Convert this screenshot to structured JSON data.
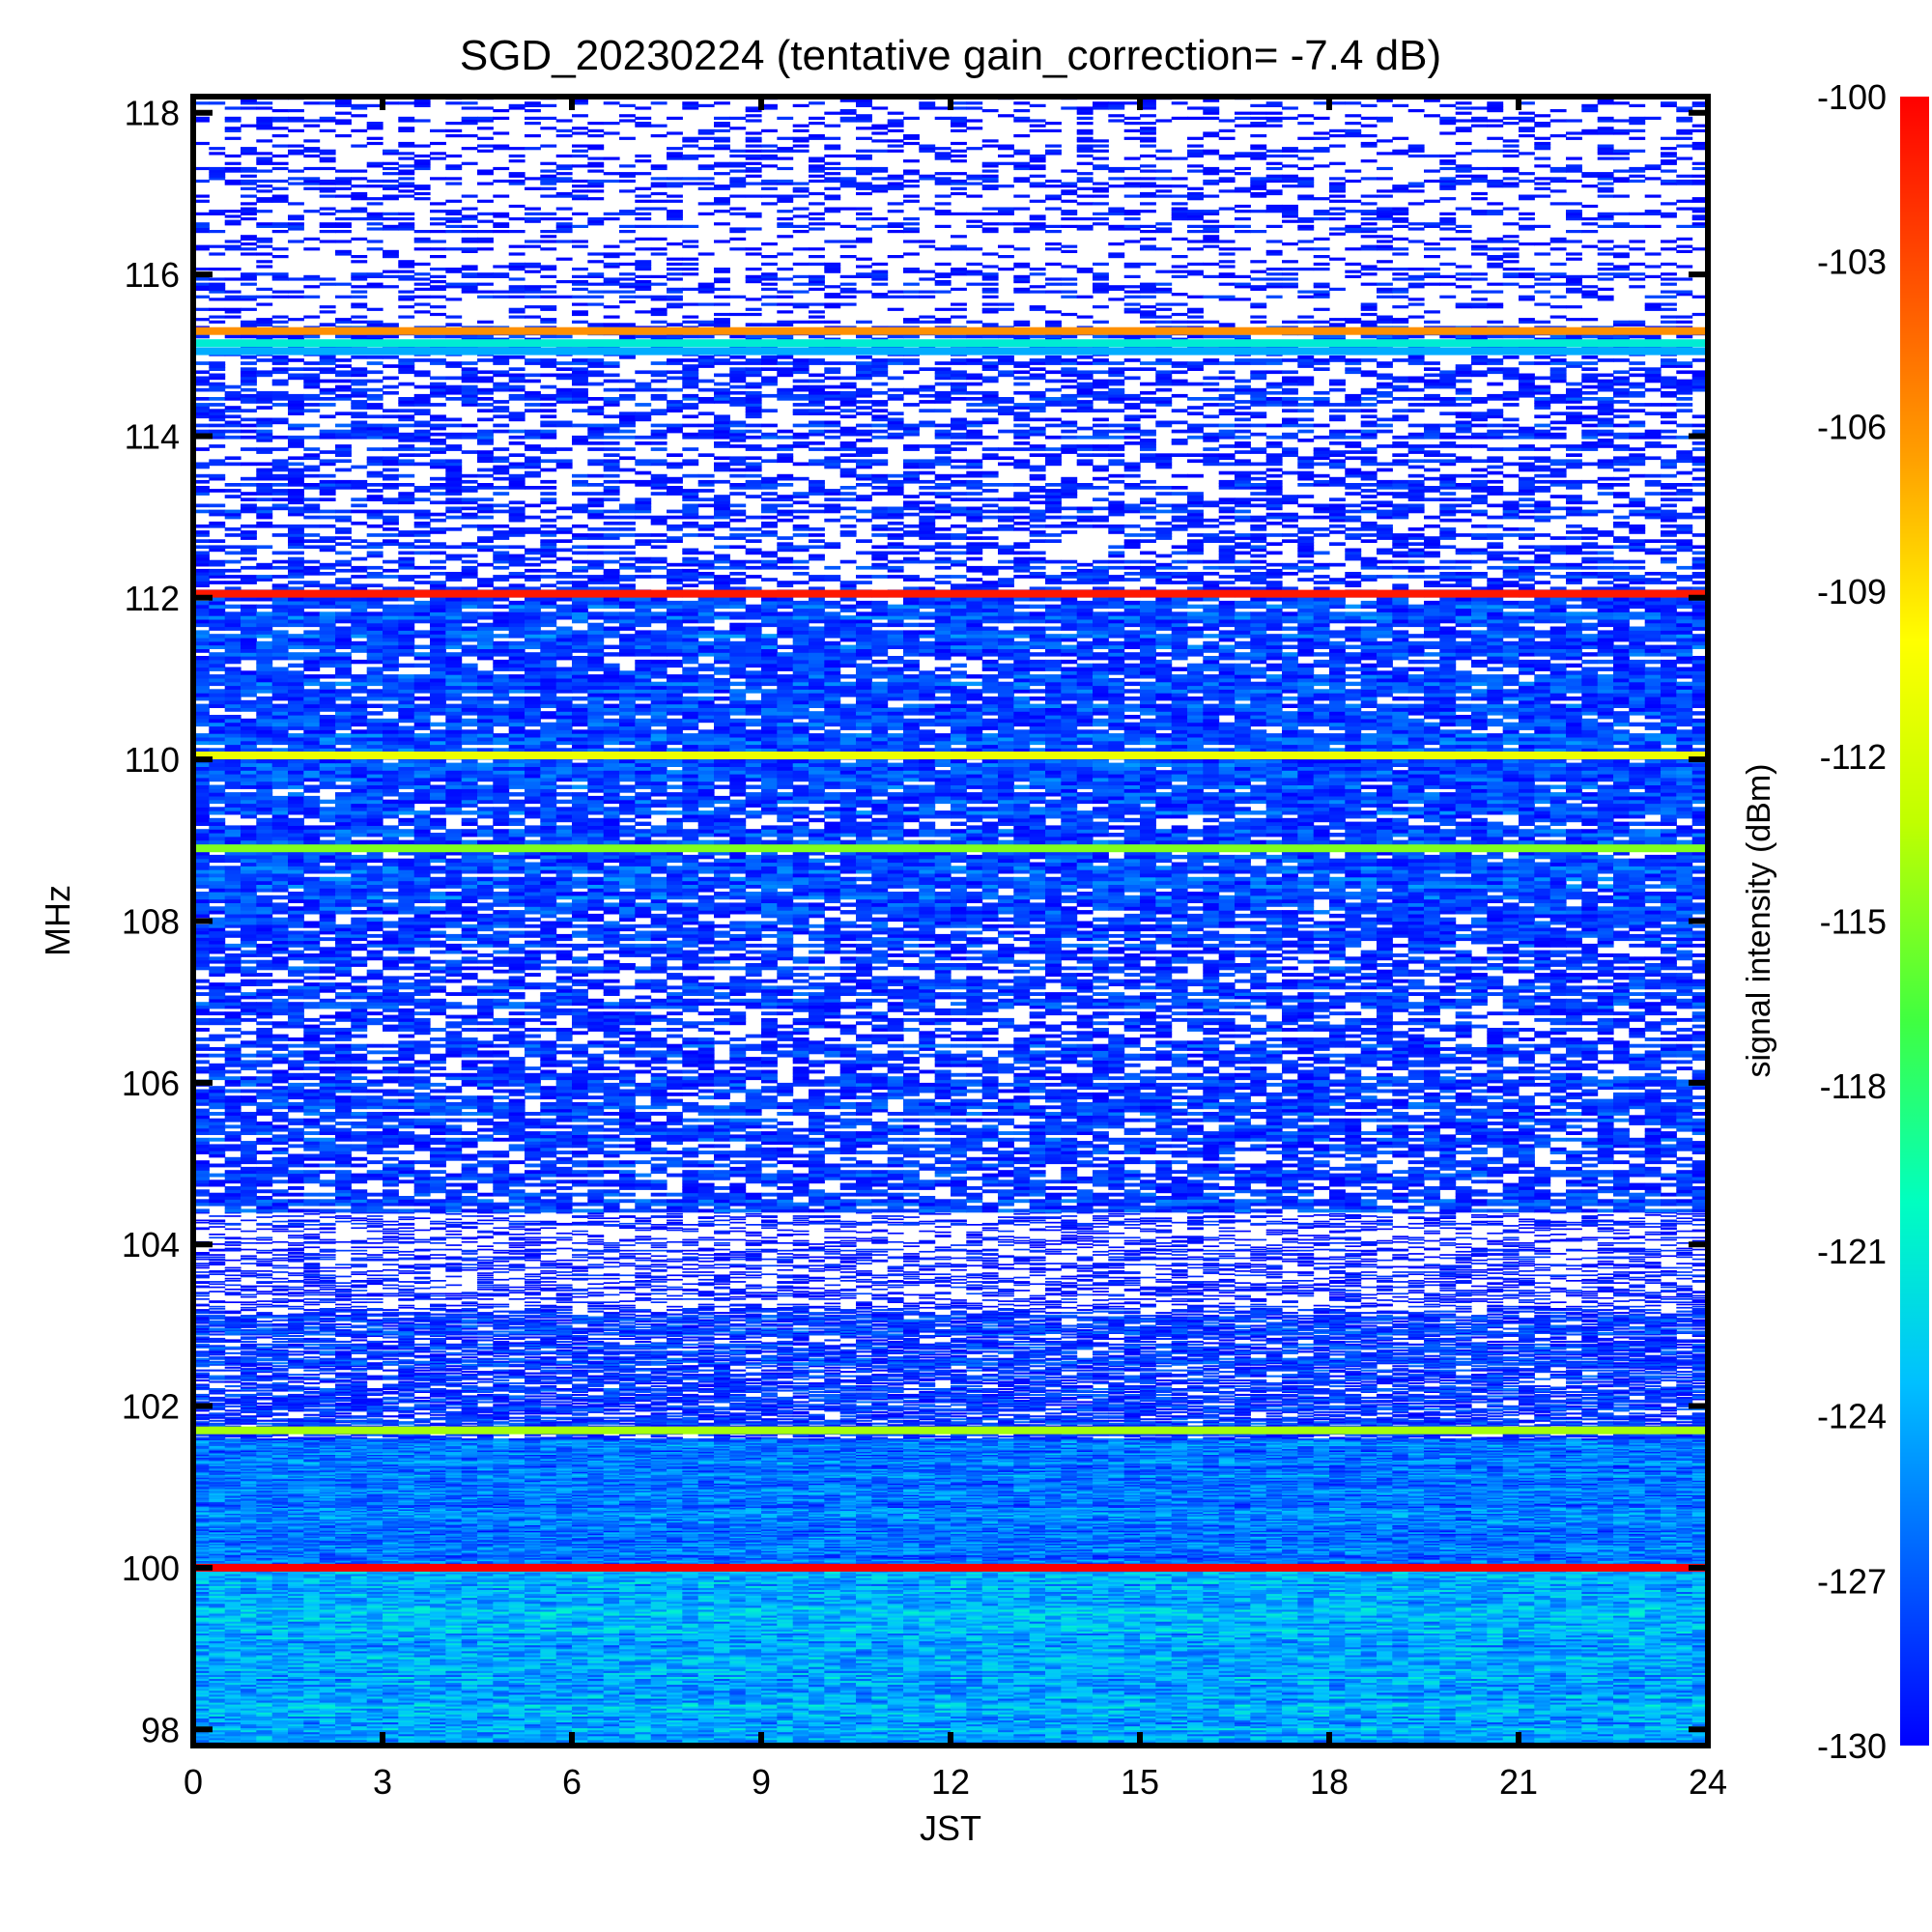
{
  "chart_data": {
    "type": "heatmap",
    "title": "SGD_20230224 (tentative gain_correction= -7.4 dB)",
    "xlabel": "JST",
    "ylabel": "MHz",
    "colorbar_label": "signal intensity (dBm)",
    "xlim": [
      0,
      24
    ],
    "ylim": [
      97.8,
      118.2
    ],
    "x_ticks": [
      "0",
      "3",
      "6",
      "9",
      "12",
      "15",
      "18",
      "21",
      "24"
    ],
    "x_tick_values": [
      0,
      3,
      6,
      9,
      12,
      15,
      18,
      21,
      24
    ],
    "y_ticks": [
      "98",
      "100",
      "102",
      "104",
      "106",
      "108",
      "110",
      "112",
      "114",
      "116",
      "118"
    ],
    "y_tick_values": [
      98,
      100,
      102,
      104,
      106,
      108,
      110,
      112,
      114,
      116,
      118
    ],
    "colorbar_ticks": [
      "-100",
      "-103",
      "-106",
      "-109",
      "-112",
      "-115",
      "-118",
      "-121",
      "-124",
      "-127",
      "-130"
    ],
    "colorbar_tick_values": [
      -100,
      -103,
      -106,
      -109,
      -112,
      -115,
      -118,
      -121,
      -124,
      -127,
      -130
    ],
    "clim": [
      -130,
      -100
    ],
    "colormap": [
      "#0000ff",
      "#0060ff",
      "#00c0ff",
      "#00ffc0",
      "#40ff40",
      "#c0ff00",
      "#ffff00",
      "#ffa000",
      "#ff5000",
      "#ff0000"
    ],
    "below_range_color": "#ffffff",
    "frequency_bands": [
      {
        "freq_min": 97.8,
        "freq_max": 100.0,
        "typical_dBm": -124
      },
      {
        "freq_min": 100.0,
        "freq_max": 101.6,
        "typical_dBm": -126
      },
      {
        "freq_min": 101.6,
        "freq_max": 103.2,
        "typical_dBm": -129
      },
      {
        "freq_min": 103.2,
        "freq_max": 104.4,
        "typical_dBm": -131
      },
      {
        "freq_min": 104.4,
        "freq_max": 108.0,
        "typical_dBm": -129
      },
      {
        "freq_min": 108.0,
        "freq_max": 112.1,
        "typical_dBm": -128
      },
      {
        "freq_min": 112.1,
        "freq_max": 115.4,
        "typical_dBm": -130
      },
      {
        "freq_min": 115.4,
        "freq_max": 118.2,
        "typical_dBm": -131
      }
    ],
    "carrier_lines": [
      {
        "freq": 100.0,
        "dBm": -100
      },
      {
        "freq": 101.7,
        "dBm": -114
      },
      {
        "freq": 108.9,
        "dBm": -115
      },
      {
        "freq": 110.05,
        "dBm": -111
      },
      {
        "freq": 112.05,
        "dBm": -101
      },
      {
        "freq": 115.3,
        "dBm": -106
      },
      {
        "freq": 115.15,
        "dBm": -121
      },
      {
        "freq": 115.05,
        "dBm": -124
      }
    ]
  }
}
